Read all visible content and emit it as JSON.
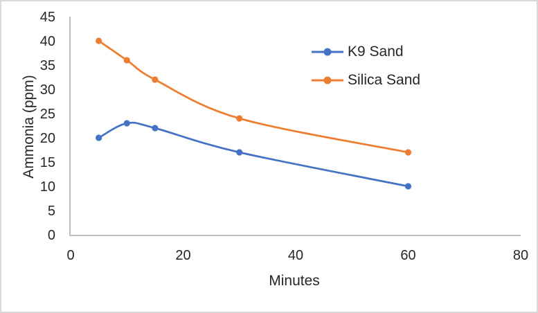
{
  "chart_data": {
    "type": "line",
    "title": "",
    "xlabel": "Minutes",
    "ylabel": "Ammonia (ppm)",
    "x": [
      5,
      10,
      15,
      30,
      60
    ],
    "series": [
      {
        "name": "K9 Sand",
        "color": "#4472C4",
        "values": [
          20,
          23,
          22,
          17,
          10
        ]
      },
      {
        "name": "Silica Sand",
        "color": "#ED7D31",
        "values": [
          40,
          36,
          32,
          24,
          17
        ]
      }
    ],
    "xlim": [
      0,
      80
    ],
    "ylim": [
      0,
      45
    ],
    "x_ticks": [
      0,
      20,
      40,
      60,
      80
    ],
    "y_ticks": [
      0,
      5,
      10,
      15,
      20,
      25,
      30,
      35,
      40,
      45
    ],
    "grid": false,
    "line_smoothing": true,
    "marker": "circle",
    "legend_position": "inside-upper-right",
    "axis_color": "#BFBFBF",
    "text_color": "#262626",
    "background_color": "#FFFFFF",
    "border_color": "#D9D9D9"
  }
}
